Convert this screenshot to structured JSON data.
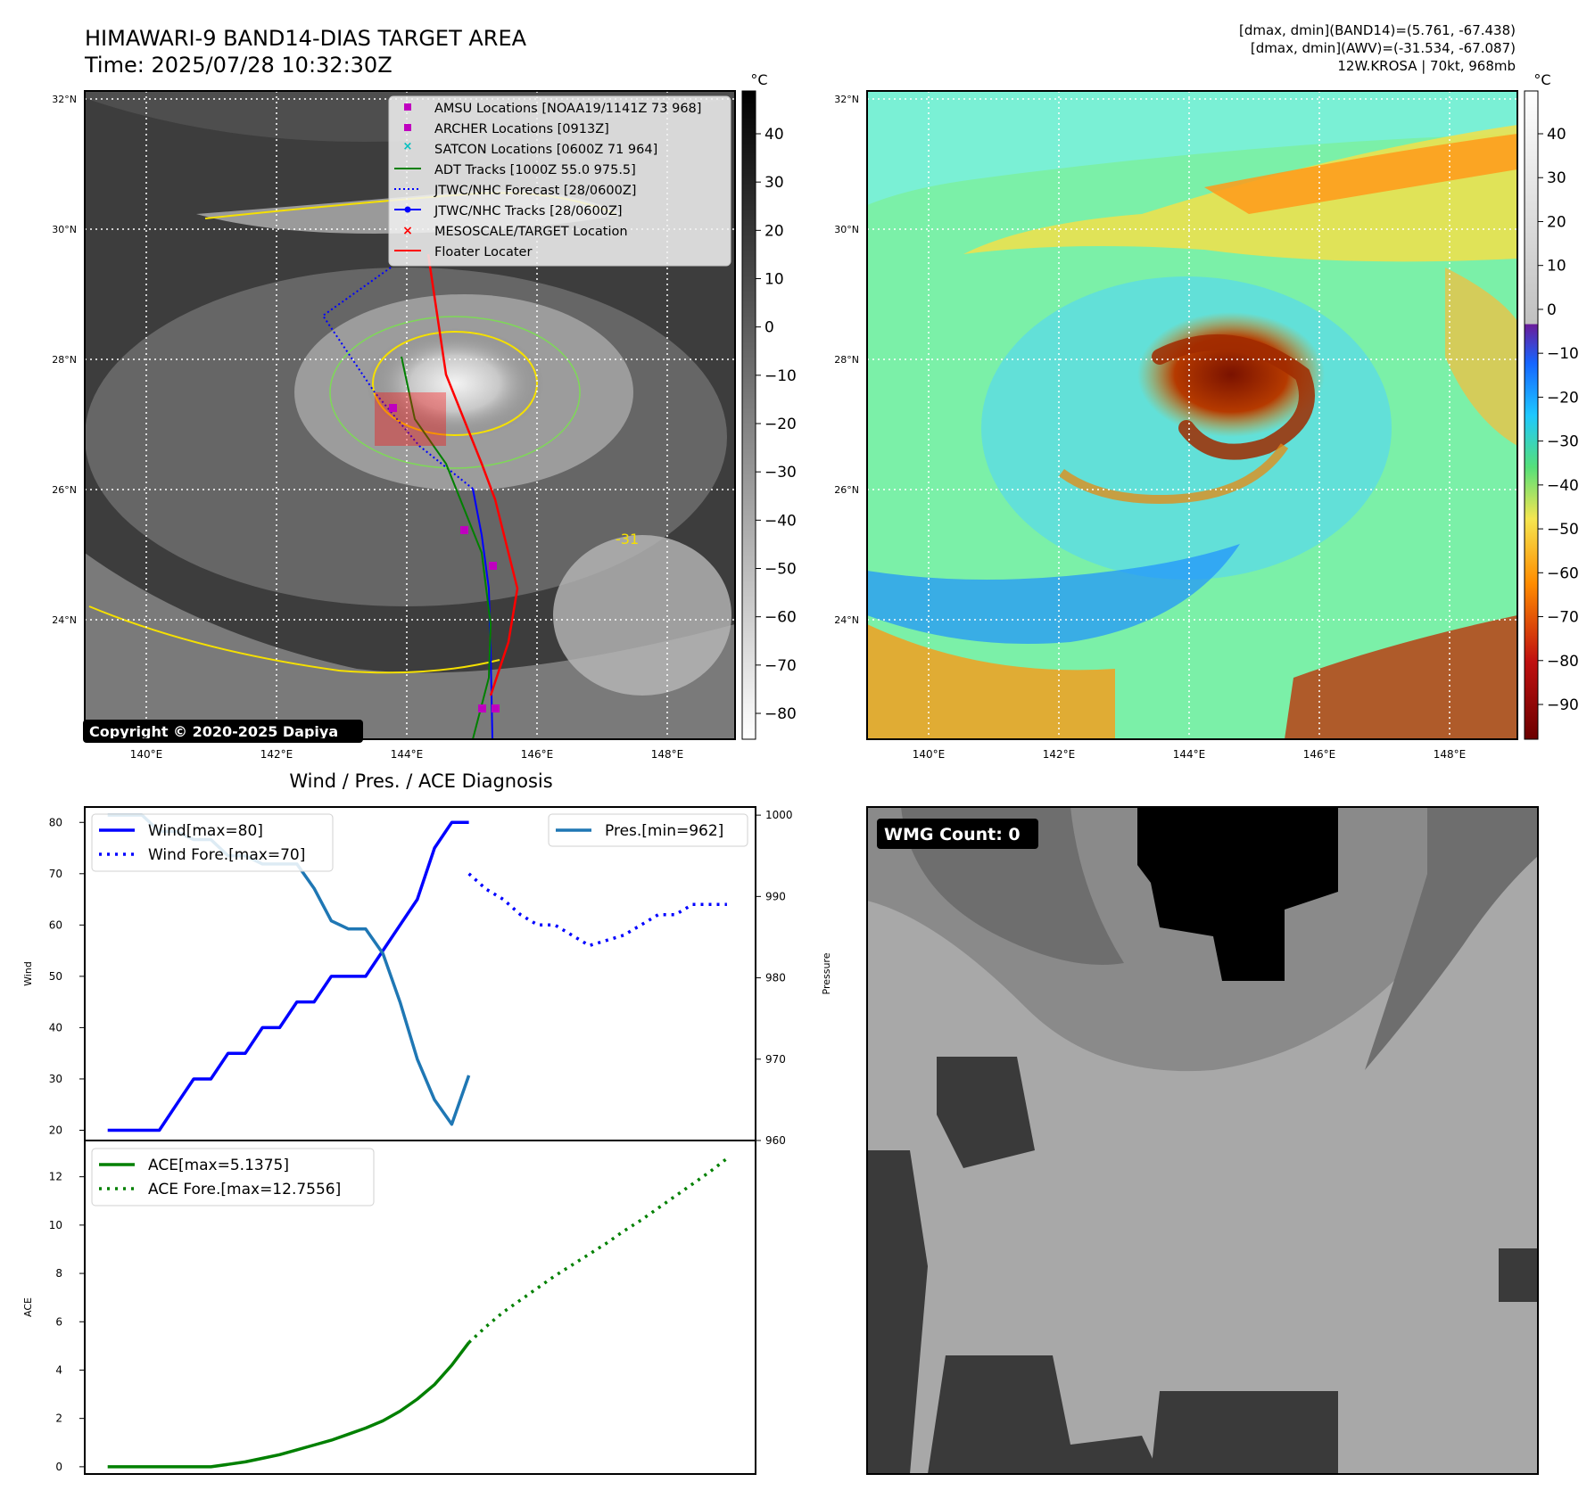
{
  "header": {
    "title_line1": "HIMAWARI-9 BAND14-DIAS TARGET AREA",
    "title_line2": "Time: 2025/07/28 10:32:30Z",
    "info_line1": "[dmax, dmin](BAND14)=(5.761, -67.438)",
    "info_line2": "[dmax, dmin](AWV)=(-31.534, -67.087)",
    "info_line3": "12W.KROSA | 70kt, 968mb"
  },
  "map_axes": {
    "lat_labels": [
      "32°N",
      "30°N",
      "28°N",
      "26°N",
      "24°N"
    ],
    "lon_labels": [
      "140°E",
      "142°E",
      "144°E",
      "146°E",
      "148°E"
    ]
  },
  "ir_panel": {
    "legend": [
      "AMSU Locations [NOAA19/1141Z 73 968]",
      "ARCHER Locations [0913Z]",
      "SATCON Locations [0600Z 71 964]",
      "ADT Tracks [1000Z 55.0 975.5]",
      "JTWC/NHC Forecast [28/0600Z]",
      "JTWC/NHC Tracks [28/0600Z]",
      "MESOSCALE/TARGET Location",
      "Floater Locater"
    ],
    "contour_label": "-31",
    "copyright": "Copyright © 2020-2025 Dapiya",
    "colorbar_unit": "°C",
    "colorbar_ticks": [
      "40",
      "30",
      "20",
      "10",
      "0",
      "−10",
      "−20",
      "−30",
      "−40",
      "−50",
      "−60",
      "−70",
      "−80"
    ]
  },
  "wv_panel": {
    "colorbar_unit": "°C",
    "colorbar_ticks": [
      "40",
      "30",
      "20",
      "10",
      "0",
      "−10",
      "−20",
      "−30",
      "−40",
      "−50",
      "−60",
      "−70",
      "−80",
      "−90"
    ]
  },
  "wmg_panel": {
    "label": "WMG Count: 0"
  },
  "colors": {
    "wind": "#0000ff",
    "pressure": "#1f77b4",
    "ace": "#008000",
    "amsu": "#bf00bf",
    "satcon": "#00bfbf",
    "floater": "#ff0000"
  },
  "chart_data": [
    {
      "type": "line",
      "title": "Wind / Pres. / ACE Diagnosis",
      "ylabel": "Wind",
      "y2label": "Pressure",
      "ylim": [
        18,
        83
      ],
      "y2lim": [
        960,
        1001
      ],
      "yticks": [
        "80",
        "70",
        "60",
        "50",
        "40",
        "30",
        "20"
      ],
      "y2ticks": [
        "1000",
        "990",
        "980",
        "970",
        "960"
      ],
      "grid": false,
      "legend_left": [
        "Wind[max=80]",
        "Wind Fore.[max=70]"
      ],
      "legend_right": [
        "Pres.[min=962]"
      ],
      "x": [
        0,
        6,
        12,
        18,
        24,
        30,
        36,
        42,
        48,
        54,
        60,
        66,
        72,
        78,
        84,
        90,
        96,
        102,
        108,
        114,
        120,
        126,
        132,
        138,
        144,
        150,
        156,
        162,
        168,
        174,
        180,
        186,
        192,
        198,
        204,
        210,
        216
      ],
      "series": [
        {
          "name": "Wind[max=80]",
          "x": [
            0,
            6,
            12,
            18,
            24,
            30,
            36,
            42,
            48,
            54,
            60,
            66,
            72,
            78,
            84,
            90,
            96,
            102,
            108,
            114,
            120,
            126
          ],
          "values": [
            20,
            20,
            20,
            20,
            25,
            30,
            30,
            35,
            35,
            40,
            40,
            45,
            45,
            50,
            50,
            50,
            55,
            60,
            65,
            75,
            80,
            80
          ]
        },
        {
          "name": "Wind Fore.[max=70]",
          "x": [
            126,
            132,
            138,
            144,
            150,
            156,
            162,
            168,
            174,
            180,
            186,
            192,
            198,
            204,
            210,
            216
          ],
          "values": [
            70,
            67,
            65,
            62,
            60,
            60,
            58,
            56,
            57,
            58,
            60,
            62,
            62,
            64,
            64,
            64
          ]
        },
        {
          "name": "Pres.[min=962]",
          "axis": "right",
          "x": [
            0,
            6,
            12,
            18,
            24,
            30,
            36,
            42,
            48,
            54,
            60,
            66,
            72,
            78,
            84,
            90,
            96,
            102,
            108,
            114,
            120,
            126
          ],
          "values": [
            1000,
            1000,
            1000,
            998,
            998,
            997,
            997,
            995,
            995,
            994,
            994,
            994,
            991,
            987,
            986,
            986,
            983,
            977,
            970,
            965,
            962,
            968
          ]
        }
      ]
    },
    {
      "type": "line",
      "ylabel": "ACE",
      "ylim": [
        -0.3,
        13.5
      ],
      "yticks": [
        "12",
        "10",
        "8",
        "6",
        "4",
        "2",
        "0"
      ],
      "grid": false,
      "legend": [
        "ACE[max=5.1375]",
        "ACE Fore.[max=12.7556]"
      ],
      "series": [
        {
          "name": "ACE[max=5.1375]",
          "x": [
            0,
            6,
            12,
            18,
            24,
            30,
            36,
            42,
            48,
            54,
            60,
            66,
            72,
            78,
            84,
            90,
            96,
            102,
            108,
            114,
            120,
            126
          ],
          "values": [
            0,
            0,
            0,
            0,
            0,
            0,
            0,
            0.1,
            0.2,
            0.35,
            0.5,
            0.7,
            0.9,
            1.1,
            1.35,
            1.6,
            1.9,
            2.3,
            2.8,
            3.4,
            4.2,
            5.1375
          ]
        },
        {
          "name": "ACE Fore.[max=12.7556]",
          "x": [
            126,
            132,
            138,
            144,
            150,
            156,
            162,
            168,
            174,
            180,
            186,
            192,
            198,
            204,
            210,
            216
          ],
          "values": [
            5.1375,
            5.8,
            6.4,
            6.9,
            7.4,
            7.9,
            8.35,
            8.8,
            9.25,
            9.75,
            10.2,
            10.7,
            11.2,
            11.7,
            12.2,
            12.7556
          ]
        }
      ]
    }
  ]
}
